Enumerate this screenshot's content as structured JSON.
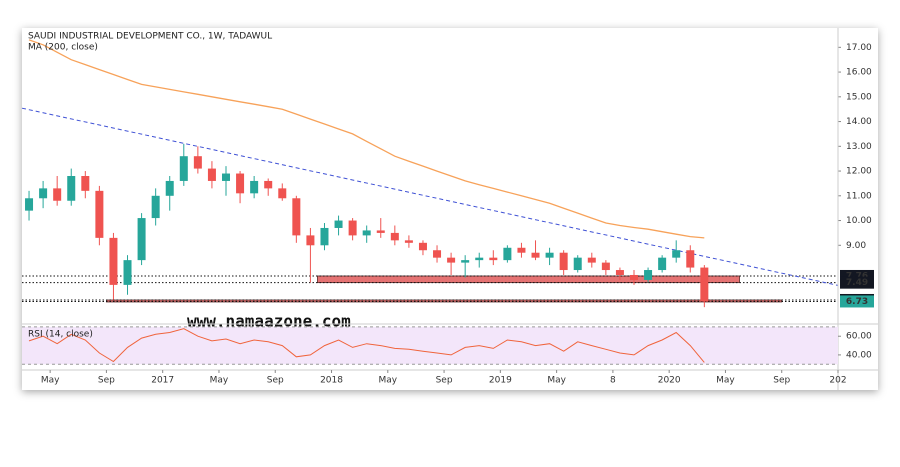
{
  "chart_data": [
    {
      "type": "candlestick",
      "title": "SAUDI INDUSTRIAL DEVELOPMENT CO., 1W, TADAWUL",
      "watermark": "www.namaazone.com",
      "x": [
        "2016-03",
        "2016-04",
        "2016-05",
        "2016-06",
        "2016-07",
        "2016-08",
        "2016-09",
        "2016-10",
        "2016-11",
        "2016-12",
        "2017-01",
        "2017-02",
        "2017-03",
        "2017-04",
        "2017-05",
        "2017-06",
        "2017-07",
        "2017-08",
        "2017-09",
        "2017-10",
        "2017-11",
        "2017-12",
        "2018-01",
        "2018-02",
        "2018-03",
        "2018-04",
        "2018-05",
        "2018-06",
        "2018-07",
        "2018-08",
        "2018-09",
        "2018-10",
        "2018-11",
        "2018-12",
        "2019-01",
        "2019-02",
        "2019-03",
        "2019-04",
        "2019-05",
        "2019-06",
        "2019-07",
        "2019-08",
        "2019-09",
        "2019-10",
        "2019-11",
        "2019-12",
        "2020-01",
        "2020-02",
        "2020-03"
      ],
      "open": [
        10.4,
        10.9,
        11.3,
        10.8,
        11.8,
        11.2,
        9.3,
        7.4,
        8.4,
        10.1,
        11.0,
        11.6,
        12.6,
        12.1,
        11.6,
        11.9,
        11.1,
        11.6,
        11.3,
        10.9,
        9.4,
        9.0,
        9.7,
        10.0,
        9.4,
        9.6,
        9.5,
        9.2,
        9.1,
        8.8,
        8.5,
        8.3,
        8.4,
        8.5,
        8.4,
        8.9,
        8.7,
        8.5,
        8.7,
        8.0,
        8.5,
        8.3,
        8.0,
        7.8,
        7.6,
        8.0,
        8.5,
        8.8,
        8.1
      ],
      "high": [
        11.2,
        11.6,
        11.8,
        12.1,
        12.0,
        11.4,
        9.5,
        8.6,
        10.3,
        11.3,
        11.8,
        13.1,
        13.0,
        12.4,
        12.2,
        12.0,
        11.8,
        11.7,
        11.5,
        11.0,
        9.7,
        9.9,
        10.2,
        10.1,
        9.8,
        10.1,
        9.8,
        9.4,
        9.2,
        9.0,
        8.7,
        8.6,
        8.7,
        8.8,
        9.0,
        9.1,
        9.2,
        8.9,
        8.8,
        8.6,
        8.7,
        8.4,
        8.1,
        8.0,
        8.1,
        8.6,
        9.2,
        9.0,
        8.2
      ],
      "low": [
        10.0,
        10.5,
        10.6,
        10.6,
        10.9,
        9.0,
        6.8,
        7.0,
        8.2,
        9.8,
        10.4,
        11.4,
        11.9,
        11.3,
        11.0,
        10.7,
        10.9,
        11.0,
        10.8,
        9.1,
        7.5,
        8.8,
        9.4,
        9.2,
        9.1,
        9.3,
        9.0,
        8.9,
        8.6,
        8.3,
        7.8,
        7.7,
        8.1,
        8.2,
        8.3,
        8.5,
        8.4,
        8.2,
        7.8,
        7.9,
        8.1,
        7.8,
        7.6,
        7.4,
        7.5,
        7.9,
        8.3,
        7.9,
        6.5
      ],
      "close": [
        10.9,
        11.3,
        10.8,
        11.8,
        11.2,
        9.3,
        7.4,
        8.4,
        10.1,
        11.0,
        11.6,
        12.6,
        12.1,
        11.6,
        11.9,
        11.1,
        11.6,
        11.3,
        10.9,
        9.4,
        9.0,
        9.7,
        10.0,
        9.4,
        9.6,
        9.5,
        9.2,
        9.1,
        8.8,
        8.5,
        8.3,
        8.4,
        8.5,
        8.4,
        8.9,
        8.7,
        8.5,
        8.7,
        8.0,
        8.5,
        8.3,
        8.0,
        7.8,
        7.6,
        8.0,
        8.5,
        8.8,
        8.1,
        6.73
      ],
      "up_color": "#26a69a",
      "down_color": "#ef5350",
      "ma": {
        "name": "MA (200, close)",
        "color": "#f7a25a",
        "values": [
          17.3,
          17.1,
          16.8,
          16.5,
          16.3,
          16.1,
          15.9,
          15.7,
          15.5,
          15.4,
          15.3,
          15.2,
          15.1,
          15.0,
          14.9,
          14.8,
          14.7,
          14.6,
          14.5,
          14.3,
          14.1,
          13.9,
          13.7,
          13.5,
          13.2,
          12.9,
          12.6,
          12.4,
          12.2,
          12.0,
          11.8,
          11.6,
          11.45,
          11.3,
          11.15,
          11.0,
          10.85,
          10.7,
          10.5,
          10.3,
          10.1,
          9.9,
          9.8,
          9.72,
          9.65,
          9.55,
          9.45,
          9.35,
          9.3
        ]
      },
      "trendline": {
        "x": [
          "2016-03",
          "2021-01"
        ],
        "y": [
          14.54,
          7.38
        ],
        "color": "#3f51d5"
      },
      "zones": [
        {
          "from": 7.49,
          "to": 7.76,
          "x": [
            "2017-12",
            "2020-06"
          ],
          "color": "#e57373"
        },
        {
          "from": 6.73,
          "to": 6.79,
          "x": [
            "2016-09",
            "2020-09"
          ],
          "color": "#e57373"
        }
      ],
      "levels": [
        7.76,
        7.49,
        6.79,
        6.73
      ],
      "level_colors": [
        "#131722",
        "#131722",
        "#131722",
        "#26a69a"
      ],
      "xlim": [
        "2016-03",
        "2021-01"
      ],
      "ylim": [
        5.9,
        17.7
      ],
      "yticks": [
        {
          "value": 9,
          "label": "9.00"
        },
        {
          "value": 10,
          "label": "10.00"
        },
        {
          "value": 11,
          "label": "11.00"
        },
        {
          "value": 12,
          "label": "12.00"
        },
        {
          "value": 13,
          "label": "13.00"
        },
        {
          "value": 14,
          "label": "14.00"
        },
        {
          "value": 15,
          "label": "15.00"
        },
        {
          "value": 16,
          "label": "16.00"
        },
        {
          "value": 17,
          "label": "17.00"
        }
      ]
    },
    {
      "type": "line",
      "title": "RSI (14, close)",
      "x": [
        "2016-03",
        "2016-04",
        "2016-05",
        "2016-06",
        "2016-07",
        "2016-08",
        "2016-09",
        "2016-10",
        "2016-11",
        "2016-12",
        "2017-01",
        "2017-02",
        "2017-03",
        "2017-04",
        "2017-05",
        "2017-06",
        "2017-07",
        "2017-08",
        "2017-09",
        "2017-10",
        "2017-11",
        "2017-12",
        "2018-01",
        "2018-02",
        "2018-03",
        "2018-04",
        "2018-05",
        "2018-06",
        "2018-07",
        "2018-08",
        "2018-09",
        "2018-10",
        "2018-11",
        "2018-12",
        "2019-01",
        "2019-02",
        "2019-03",
        "2019-04",
        "2019-05",
        "2019-06",
        "2019-07",
        "2019-08",
        "2019-09",
        "2019-10",
        "2019-11",
        "2019-12",
        "2020-01",
        "2020-02",
        "2020-03"
      ],
      "values": [
        55,
        60,
        52,
        62,
        56,
        42,
        33,
        48,
        58,
        62,
        64,
        68,
        60,
        55,
        57,
        52,
        56,
        54,
        50,
        38,
        40,
        50,
        56,
        48,
        52,
        50,
        47,
        46,
        44,
        42,
        40,
        48,
        50,
        47,
        56,
        54,
        50,
        52,
        44,
        54,
        50,
        46,
        42,
        40,
        50,
        56,
        64,
        50,
        32
      ],
      "color": "#f0643c",
      "bands": [
        30,
        70
      ],
      "band_color": "#f3e6fa",
      "xlim": [
        "2016-03",
        "2021-01"
      ],
      "ylim": [
        26,
        72
      ],
      "yticks": [
        {
          "value": 40,
          "label": "40.00"
        },
        {
          "value": 60,
          "label": "60.00"
        }
      ],
      "xticks": [
        {
          "value": "2016-05",
          "label": "May"
        },
        {
          "value": "2016-09",
          "label": "Sep"
        },
        {
          "value": "2017-01",
          "label": "2017"
        },
        {
          "value": "2017-05",
          "label": "May"
        },
        {
          "value": "2017-09",
          "label": "Sep"
        },
        {
          "value": "2018-01",
          "label": "2018"
        },
        {
          "value": "2018-05",
          "label": "May"
        },
        {
          "value": "2018-09",
          "label": "Sep"
        },
        {
          "value": "2019-01",
          "label": "2019"
        },
        {
          "value": "2019-05",
          "label": "May"
        },
        {
          "value": "2019-09",
          "label": "8"
        },
        {
          "value": "2020-01",
          "label": "2020"
        },
        {
          "value": "2020-05",
          "label": "May"
        },
        {
          "value": "2020-09",
          "label": "Sep"
        },
        {
          "value": "2021-01",
          "label": "202"
        }
      ]
    }
  ]
}
